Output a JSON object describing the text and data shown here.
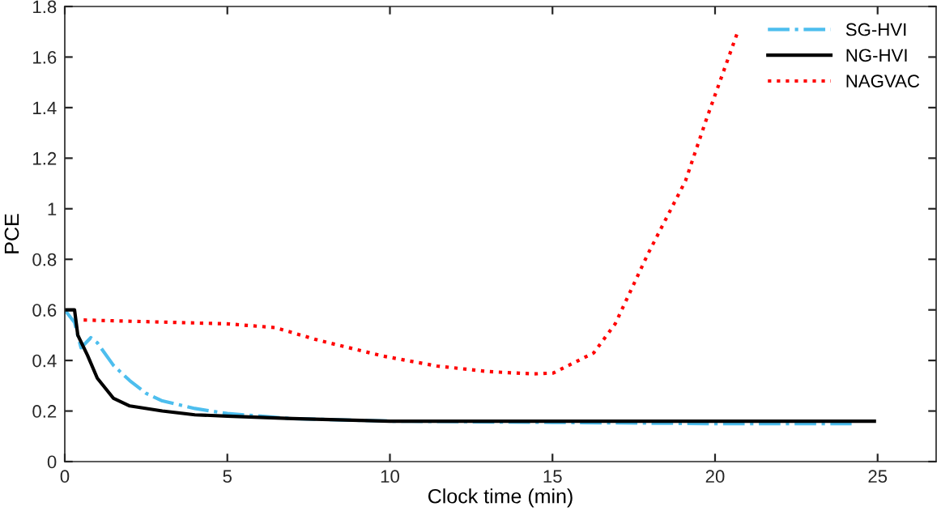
{
  "chart_data": {
    "type": "line",
    "xlabel": "Clock time (min)",
    "ylabel": "PCE",
    "xlim": [
      0,
      26.8
    ],
    "ylim": [
      0,
      1.8
    ],
    "xticks": [
      0,
      5,
      10,
      15,
      20,
      25
    ],
    "yticks": [
      0,
      0.2,
      0.4,
      0.6,
      0.8,
      1,
      1.2,
      1.4,
      1.6,
      1.8
    ],
    "grid": false,
    "legend": "top right",
    "marker": "none",
    "series": [
      {
        "name": "SG-HVI",
        "color": "#4dbeee",
        "line_style": "dashdot",
        "x": [
          0,
          0.3,
          0.5,
          0.8,
          1.0,
          1.5,
          2,
          2.5,
          3,
          4,
          5,
          7,
          10,
          15,
          20,
          24.2
        ],
        "values": [
          0.6,
          0.55,
          0.45,
          0.49,
          0.47,
          0.38,
          0.32,
          0.27,
          0.24,
          0.21,
          0.19,
          0.17,
          0.16,
          0.155,
          0.15,
          0.15
        ]
      },
      {
        "name": "NG-HVI",
        "color": "#000000",
        "line_style": "solid",
        "x": [
          0,
          0.3,
          0.4,
          0.7,
          1.0,
          1.5,
          2,
          3,
          4,
          5,
          7,
          10,
          15,
          20,
          24.9
        ],
        "values": [
          0.6,
          0.6,
          0.5,
          0.42,
          0.33,
          0.25,
          0.22,
          0.2,
          0.185,
          0.18,
          0.17,
          0.16,
          0.16,
          0.16,
          0.16
        ]
      },
      {
        "name": "NAGVAC",
        "color": "#ff0000",
        "line_style": "dotted",
        "x": [
          0.58,
          4.98,
          6.47,
          7.8,
          9.8,
          11.45,
          12.95,
          13.45,
          14.44,
          15.02,
          16.27,
          16.93,
          17.93,
          19.09,
          19.75,
          20.67
        ],
        "values": [
          0.56,
          0.545,
          0.53,
          0.48,
          0.417,
          0.378,
          0.357,
          0.353,
          0.347,
          0.35,
          0.43,
          0.545,
          0.82,
          1.11,
          1.36,
          1.69
        ]
      }
    ]
  }
}
